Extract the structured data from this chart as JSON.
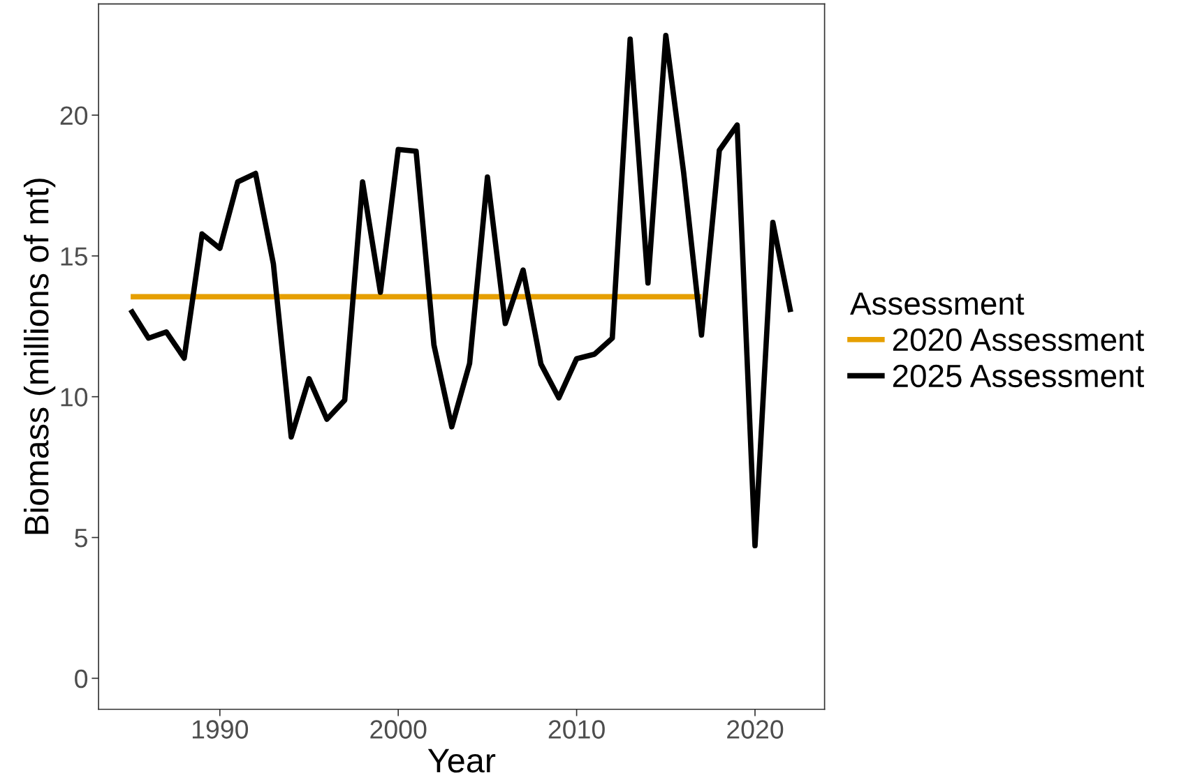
{
  "chart_data": {
    "type": "line",
    "xlabel": "Year",
    "ylabel": "Biomass (millions of mt)",
    "legend_title": "Assessment",
    "series": [
      {
        "name": "2020 Assessment",
        "color": "#e69f00",
        "x": [
          1985,
          2017
        ],
        "values": [
          13.55,
          13.55
        ]
      },
      {
        "name": "2025 Assessment",
        "color": "#000000",
        "x": [
          1985,
          1986,
          1987,
          1988,
          1989,
          1990,
          1991,
          1992,
          1993,
          1994,
          1995,
          1996,
          1997,
          1998,
          1999,
          2000,
          2001,
          2002,
          2003,
          2004,
          2005,
          2006,
          2007,
          2008,
          2009,
          2010,
          2011,
          2012,
          2013,
          2014,
          2015,
          2016,
          2017,
          2018,
          2019,
          2020,
          2021,
          2022
        ],
        "values": [
          13.09,
          12.08,
          12.3,
          11.37,
          15.78,
          15.27,
          17.63,
          17.93,
          14.72,
          8.57,
          10.64,
          9.2,
          9.88,
          17.63,
          13.71,
          18.78,
          18.72,
          11.84,
          8.93,
          11.18,
          17.8,
          12.6,
          14.5,
          11.16,
          9.96,
          11.35,
          11.51,
          12.08,
          22.7,
          14.04,
          22.83,
          17.96,
          12.19,
          18.75,
          19.65,
          4.71,
          16.19,
          13.01
        ]
      }
    ],
    "xlim": [
      1983.2,
      2023.9
    ],
    "xticks": [
      1990,
      2000,
      2010,
      2020
    ],
    "ylim": [
      -1.1,
      23.95
    ],
    "yticks": [
      0,
      5,
      10,
      15,
      20
    ],
    "grid": false,
    "legend": "right",
    "line_style": "solid",
    "marker": "none"
  }
}
